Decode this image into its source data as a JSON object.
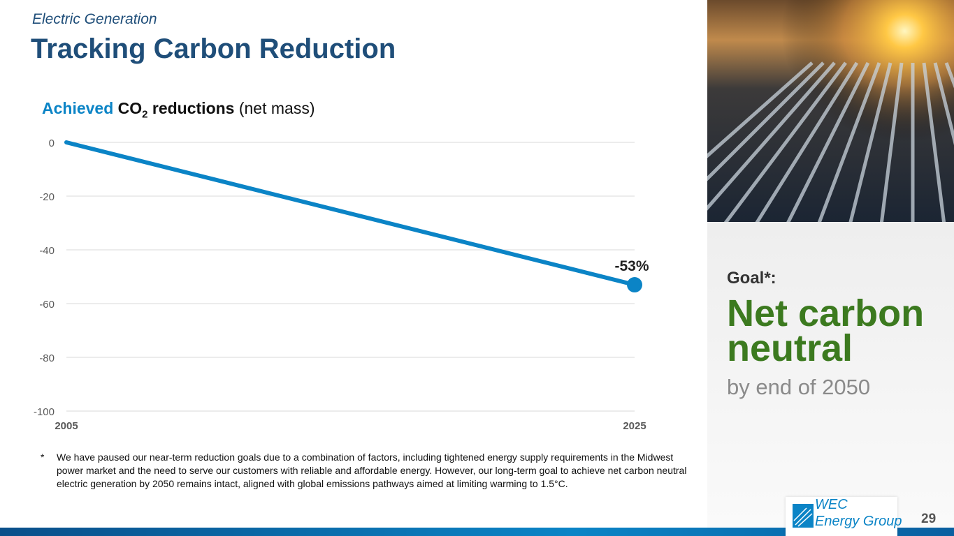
{
  "header": {
    "section": "Electric Generation",
    "title": "Tracking Carbon Reduction"
  },
  "chart_data": {
    "type": "line",
    "title_parts": {
      "accent": "Achieved",
      "bold": "CO",
      "sub": "2",
      "bold2": "reductions",
      "plain": "(net mass)"
    },
    "x": [
      "2005",
      "2025"
    ],
    "series": [
      {
        "values": [
          0,
          -53
        ]
      }
    ],
    "yticks": [
      0,
      -20,
      -40,
      -60,
      -80,
      -100
    ],
    "ylim": [
      -100,
      0
    ],
    "grid": true,
    "annotation": "-53%",
    "color": "#0b84c6"
  },
  "footnote": {
    "star": "*",
    "text": "We have paused our near-term reduction goals due to a combination of factors, including tightened energy supply requirements in the Midwest power market and the need to serve our customers with reliable and affordable energy. However, our long-term goal to achieve net carbon neutral electric generation by 2050 remains intact, aligned with global emissions pathways aimed at limiting warming to 1.5°C."
  },
  "goal": {
    "label": "Goal*:",
    "value": "Net carbon neutral",
    "by": "by end of 2050"
  },
  "logo": {
    "line1": "WEC",
    "line2": "Energy Group"
  },
  "page_number": "29"
}
